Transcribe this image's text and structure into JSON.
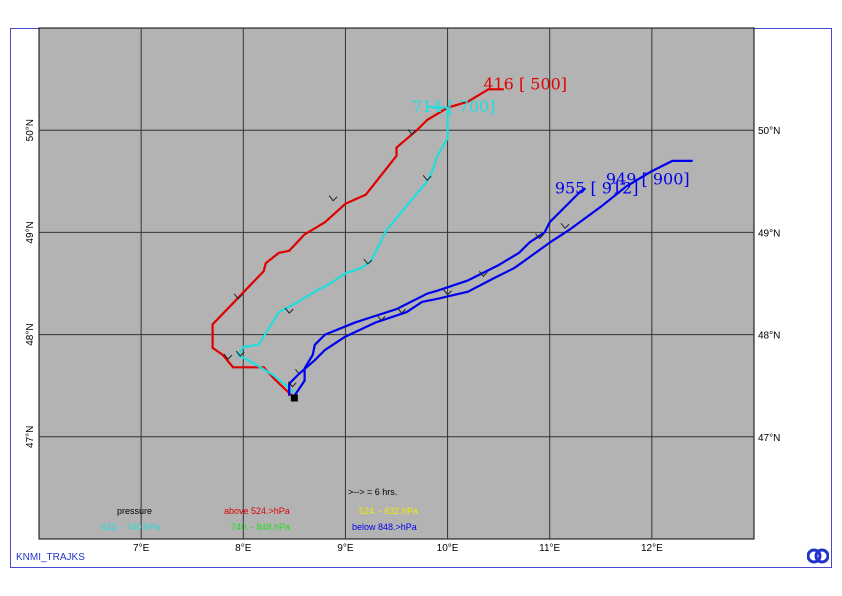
{
  "map": {
    "lon_range": [
      6.0,
      13.0
    ],
    "lat_range": [
      46.0,
      51.0
    ],
    "lon_ticks": [
      "7°E",
      "8°E",
      "9°E",
      "10°E",
      "11°E",
      "12°E"
    ],
    "lat_ticks_left": [
      "50°N",
      "49°N",
      "48°N",
      "47°N"
    ],
    "lat_ticks_right": [
      "50°N",
      "49°N",
      "48°N",
      "47°N"
    ],
    "background": "#b3b3b3",
    "grid_color": "#333333"
  },
  "start_marker": {
    "lon": 8.5,
    "lat": 47.38
  },
  "trajectories": [
    {
      "color": "#e00000",
      "label": "416 [ 500]",
      "points": [
        [
          8.5,
          47.38
        ],
        [
          8.3,
          47.57
        ],
        [
          8.2,
          47.68
        ],
        [
          7.9,
          47.68
        ],
        [
          7.8,
          47.8
        ],
        [
          7.7,
          47.87
        ],
        [
          7.7,
          48.1
        ],
        [
          7.95,
          48.36
        ],
        [
          8.2,
          48.62
        ],
        [
          8.22,
          48.7
        ],
        [
          8.35,
          48.8
        ],
        [
          8.45,
          48.82
        ],
        [
          8.6,
          48.98
        ],
        [
          8.8,
          49.1
        ],
        [
          9.0,
          49.28
        ],
        [
          9.2,
          49.37
        ],
        [
          9.5,
          49.75
        ],
        [
          9.5,
          49.83
        ],
        [
          9.7,
          50.0
        ],
        [
          9.8,
          50.1
        ],
        [
          10.0,
          50.22
        ],
        [
          10.2,
          50.28
        ],
        [
          10.4,
          50.4
        ],
        [
          10.5,
          50.4
        ],
        [
          10.55,
          50.4
        ]
      ],
      "arrows": [
        [
          7.85,
          47.77
        ],
        [
          7.95,
          48.36
        ],
        [
          8.88,
          49.32
        ],
        [
          9.65,
          49.97
        ]
      ]
    },
    {
      "color": "#22dddd",
      "label": "714 [ 700]",
      "points": [
        [
          8.5,
          47.43
        ],
        [
          8.3,
          47.6
        ],
        [
          8.1,
          47.72
        ],
        [
          7.95,
          47.8
        ],
        [
          8.0,
          47.88
        ],
        [
          8.15,
          47.9
        ],
        [
          8.35,
          48.22
        ],
        [
          8.5,
          48.3
        ],
        [
          8.7,
          48.42
        ],
        [
          8.85,
          48.5
        ],
        [
          9.0,
          48.6
        ],
        [
          9.15,
          48.65
        ],
        [
          9.25,
          48.72
        ],
        [
          9.4,
          49.02
        ],
        [
          9.8,
          49.5
        ],
        [
          9.85,
          49.6
        ],
        [
          9.9,
          49.75
        ],
        [
          10.0,
          49.92
        ],
        [
          10.0,
          50.22
        ],
        [
          9.8,
          50.23
        ]
      ],
      "arrows": [
        [
          7.97,
          47.8
        ],
        [
          8.45,
          48.22
        ],
        [
          9.22,
          48.7
        ],
        [
          9.8,
          49.52
        ]
      ]
    },
    {
      "color": "#0000ee",
      "label": "955 [ 912]",
      "points": [
        [
          8.5,
          47.4
        ],
        [
          8.6,
          47.55
        ],
        [
          8.6,
          47.67
        ],
        [
          8.68,
          47.8
        ],
        [
          8.7,
          47.9
        ],
        [
          8.8,
          48.0
        ],
        [
          9.1,
          48.12
        ],
        [
          9.5,
          48.25
        ],
        [
          9.8,
          48.4
        ],
        [
          9.9,
          48.43
        ],
        [
          10.2,
          48.53
        ],
        [
          10.5,
          48.68
        ],
        [
          10.7,
          48.8
        ],
        [
          10.8,
          48.9
        ],
        [
          10.95,
          49.0
        ],
        [
          11.0,
          49.1
        ],
        [
          11.1,
          49.2
        ],
        [
          11.3,
          49.4
        ],
        [
          11.35,
          49.43
        ]
      ],
      "arrows": [
        [
          8.55,
          47.62
        ],
        [
          9.55,
          48.22
        ],
        [
          10.35,
          48.58
        ],
        [
          10.9,
          48.95
        ]
      ]
    },
    {
      "color": "#0000ee",
      "label": "949 [ 900]",
      "points": [
        [
          8.45,
          47.4
        ],
        [
          8.45,
          47.52
        ],
        [
          8.55,
          47.62
        ],
        [
          8.7,
          47.75
        ],
        [
          8.8,
          47.85
        ],
        [
          9.0,
          47.98
        ],
        [
          9.3,
          48.12
        ],
        [
          9.6,
          48.22
        ],
        [
          9.75,
          48.32
        ],
        [
          9.9,
          48.35
        ],
        [
          10.2,
          48.42
        ],
        [
          10.45,
          48.55
        ],
        [
          10.65,
          48.65
        ],
        [
          10.75,
          48.72
        ],
        [
          11.0,
          48.9
        ],
        [
          11.2,
          49.03
        ],
        [
          11.5,
          49.25
        ],
        [
          11.75,
          49.45
        ],
        [
          12.0,
          49.6
        ],
        [
          12.2,
          49.7
        ],
        [
          12.4,
          49.7
        ]
      ],
      "arrows": [
        [
          8.48,
          47.5
        ],
        [
          9.35,
          48.15
        ],
        [
          10.0,
          48.4
        ],
        [
          11.15,
          49.05
        ]
      ]
    }
  ],
  "legend": {
    "interval": ">--> =  6 hrs.",
    "title": "pressure",
    "above": "above  524.>hPa",
    "r2": "524. -   632.hPa",
    "r3": "632. -   740.hPa",
    "r4": "740. -   848.hPa",
    "below": "below  848.>hPa",
    "colors": {
      "red": "#e00000",
      "yellow": "#eeee00",
      "cyan": "#22dddd",
      "green": "#22dd22",
      "blue": "#0000ee"
    }
  },
  "footer": "KNMI_TRAJKS"
}
